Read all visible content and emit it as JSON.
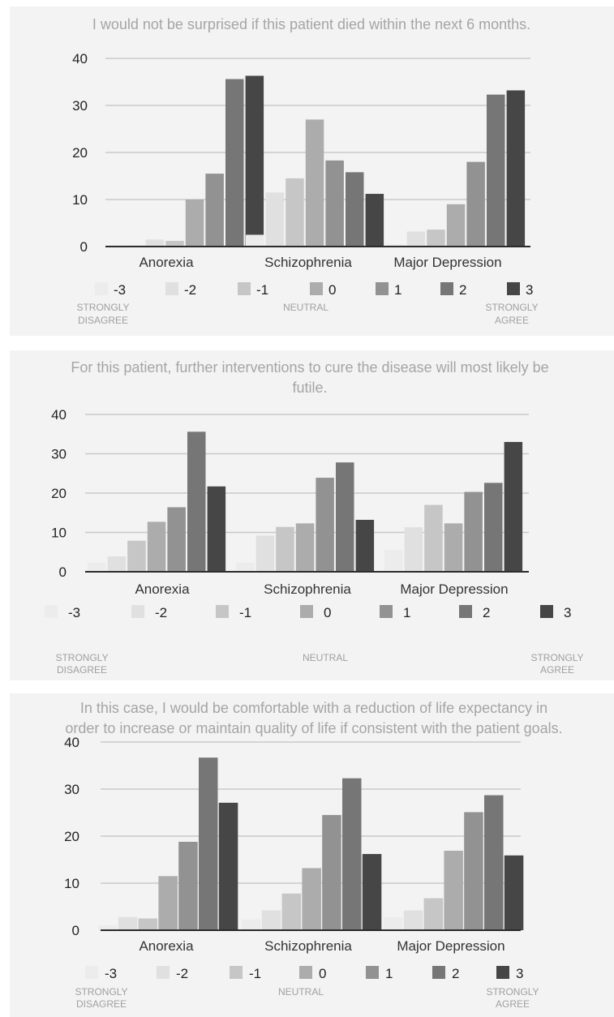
{
  "scale_labels": {
    "disagree_line1": "STRONGLY",
    "disagree_line2": "DISAGREE",
    "neutral": "NEUTRAL",
    "agree_line1": "STRONGLY",
    "agree_line2": "AGREE"
  },
  "series_colors": [
    "#ececec",
    "#e0e0e0",
    "#c6c6c6",
    "#acacac",
    "#929292",
    "#767676",
    "#464646"
  ],
  "chart_data": [
    {
      "type": "bar",
      "title": "I would not be surprised if this patient died within the next 6 months.",
      "categories": [
        "Anorexia",
        "Schizophrenia",
        "Major Depression"
      ],
      "ylim": [
        0,
        40
      ],
      "yticks": [
        0,
        10,
        20,
        30,
        40
      ],
      "grid": true,
      "legend_position": "bottom",
      "series": [
        {
          "name": "-3",
          "values": [
            0.3,
            2.5,
            0.5
          ]
        },
        {
          "name": "-2",
          "values": [
            1.5,
            11.5,
            3.2
          ]
        },
        {
          "name": "-1",
          "values": [
            1.2,
            14.5,
            3.6
          ]
        },
        {
          "name": "0",
          "values": [
            10.0,
            27.0,
            9.0
          ]
        },
        {
          "name": "1",
          "values": [
            15.5,
            18.3,
            18.0
          ]
        },
        {
          "name": "2",
          "values": [
            35.6,
            15.8,
            32.3
          ]
        },
        {
          "name": "3",
          "values": [
            36.3,
            11.2,
            33.2
          ]
        }
      ]
    },
    {
      "type": "bar",
      "title": "For this patient, further interventions to cure the disease will most likely be futile.",
      "categories": [
        "Anorexia",
        "Schizophrenia",
        "Major Depression"
      ],
      "ylim": [
        0,
        40
      ],
      "yticks": [
        0,
        10,
        20,
        30,
        40
      ],
      "grid": true,
      "legend_position": "bottom",
      "series": [
        {
          "name": "-3",
          "values": [
            2.3,
            2.3,
            5.6
          ]
        },
        {
          "name": "-2",
          "values": [
            3.9,
            9.2,
            11.3
          ]
        },
        {
          "name": "-1",
          "values": [
            7.9,
            11.4,
            17.0
          ]
        },
        {
          "name": "0",
          "values": [
            12.7,
            12.3,
            12.3
          ]
        },
        {
          "name": "1",
          "values": [
            16.4,
            23.9,
            20.3
          ]
        },
        {
          "name": "2",
          "values": [
            35.6,
            27.8,
            22.6
          ]
        },
        {
          "name": "3",
          "values": [
            21.7,
            13.2,
            33.0
          ]
        }
      ]
    },
    {
      "type": "bar",
      "title": "In this case, I would be comfortable with a reduction of life expectancy in order to increase or maintain quality of life if consistent with the patient goals.",
      "categories": [
        "Anorexia",
        "Schizophrenia",
        "Major Depression"
      ],
      "ylim": [
        0,
        40
      ],
      "yticks": [
        0,
        10,
        20,
        30,
        40
      ],
      "grid": true,
      "legend_position": "bottom",
      "series": [
        {
          "name": "-3",
          "values": [
            1.0,
            2.3,
            2.8
          ]
        },
        {
          "name": "-2",
          "values": [
            2.8,
            4.2,
            4.2
          ]
        },
        {
          "name": "-1",
          "values": [
            2.5,
            7.8,
            6.8
          ]
        },
        {
          "name": "0",
          "values": [
            11.5,
            13.2,
            16.9
          ]
        },
        {
          "name": "1",
          "values": [
            18.8,
            24.5,
            25.1
          ]
        },
        {
          "name": "2",
          "values": [
            36.7,
            32.3,
            28.7
          ]
        },
        {
          "name": "3",
          "values": [
            27.1,
            16.2,
            15.9
          ]
        }
      ]
    }
  ]
}
